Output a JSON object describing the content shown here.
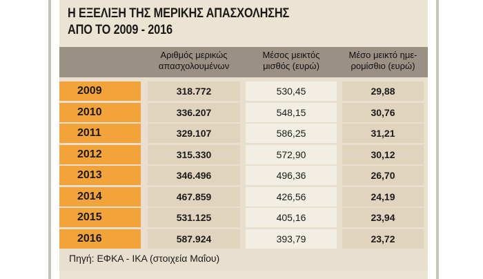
{
  "chart_data": {
    "type": "table",
    "title": [
      "Η ΕΞΕΛΙΞΗ ΤΗΣ ΜΕΡΙΚΗΣ ΑΠΑΣΧΟΛΗΣΗΣ",
      "ΑΠΟ ΤΟ 2009 - 2016"
    ],
    "columns": [
      [
        "Αριθμός μερικώς",
        "απασχολουμένων"
      ],
      [
        "Μέσος μεικτός",
        "μισθός (ευρώ)"
      ],
      [
        "Μέσο μεικτό ημε-",
        "ρομίσθιο (ευρώ)"
      ]
    ],
    "rows": [
      {
        "year": "2009",
        "values": [
          "318.772",
          "530,45",
          "29,88"
        ]
      },
      {
        "year": "2010",
        "values": [
          "336.207",
          "548,15",
          "30,76"
        ]
      },
      {
        "year": "2011",
        "values": [
          "329.107",
          "586,25",
          "31,21"
        ]
      },
      {
        "year": "2012",
        "values": [
          "315.330",
          "572,90",
          "30,12"
        ]
      },
      {
        "year": "2013",
        "values": [
          "346.496",
          "496,36",
          "26,70"
        ]
      },
      {
        "year": "2014",
        "values": [
          "467.859",
          "426,56",
          "24,19"
        ]
      },
      {
        "year": "2015",
        "values": [
          "531.125",
          "405,16",
          "23,94"
        ]
      },
      {
        "year": "2016",
        "values": [
          "587.924",
          "393,79",
          "23,72"
        ]
      }
    ],
    "source": "Πηγή: ΕΦΚΑ - ΙΚΑ (στοιχεία Μαΐου)"
  }
}
